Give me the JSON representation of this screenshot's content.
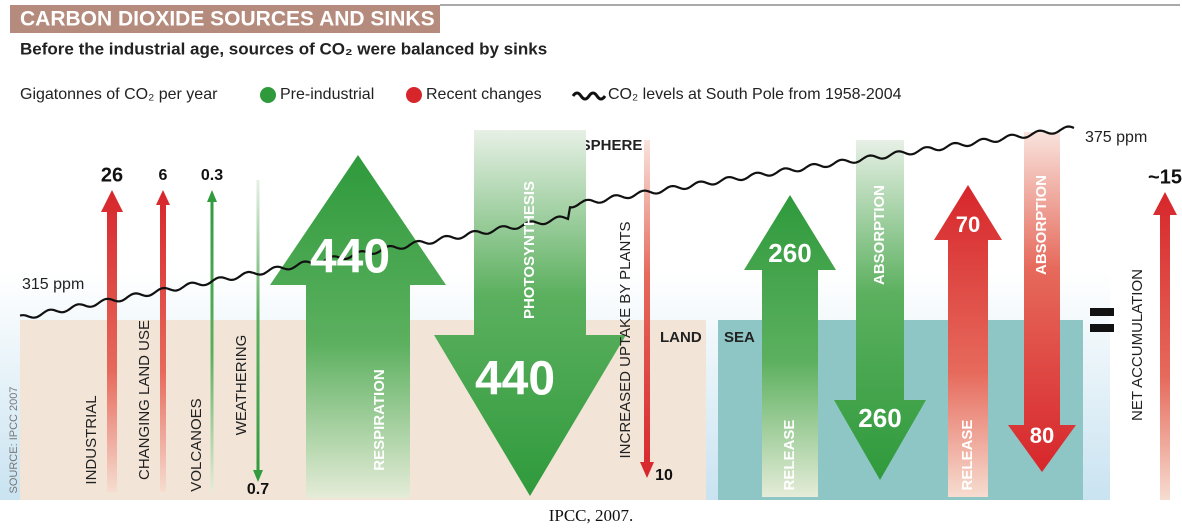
{
  "header": {
    "title": "CARBON DIOXIDE SOURCES AND SINKS",
    "subtitle": "Before the industrial age, sources of CO₂ were balanced by sinks"
  },
  "legend": {
    "units": "Gigatonnes of CO₂ per year",
    "pre_industrial": "Pre-industrial",
    "recent": "Recent changes",
    "line": "CO₂ levels at South Pole from 1958-2004"
  },
  "co2_line": {
    "start_label": "315 ppm",
    "end_label": "375 ppm"
  },
  "regions": {
    "atmosphere": "ATMOSPHERE",
    "land": "LAND",
    "sea": "SEA"
  },
  "flows": [
    {
      "label": "INDUSTRIAL",
      "value": 26
    },
    {
      "label": "CHANGING LAND USE",
      "value": 6
    },
    {
      "label": "VOLCANOES",
      "value": 0.3
    },
    {
      "label": "WEATHERING",
      "value": 0.7
    },
    {
      "label": "RESPIRATION",
      "value": 440
    },
    {
      "label": "PHOTOSYNTHESIS",
      "value": 440
    },
    {
      "label": "INCREASED UPTAKE BY PLANTS",
      "value": 10
    },
    {
      "label": "RELEASE",
      "value": 260
    },
    {
      "label": "ABSORPTION",
      "value": 260
    },
    {
      "label": "RELEASE",
      "value": 70
    },
    {
      "label": "ABSORPTION",
      "value": 80
    },
    {
      "label": "NET ACCUMULATION",
      "value": "~15"
    }
  ],
  "source": "SOURCE: IPCC 2007",
  "caption": "IPCC, 2007."
}
